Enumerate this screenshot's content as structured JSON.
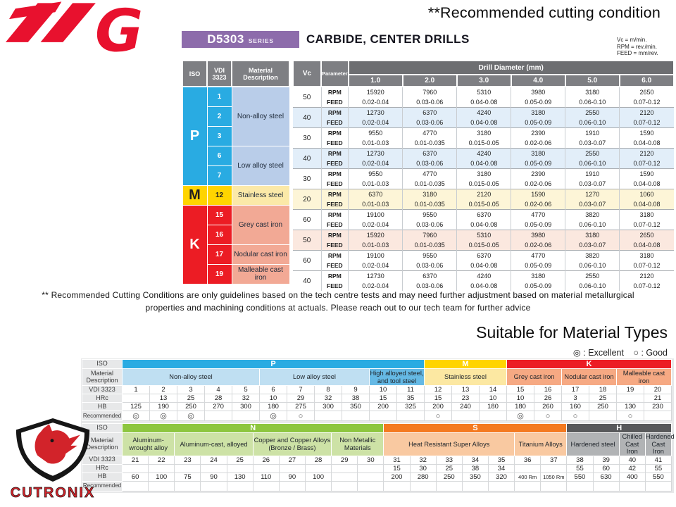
{
  "header": {
    "recommended_title": "**Recommended cutting condition",
    "series_code": "D5303",
    "series_label": "SERIES",
    "product_title": "CARBIDE, CENTER DRILLS",
    "units": [
      "Vc = m/min.",
      "RPM = rev./min.",
      "FEED = mm/rev."
    ]
  },
  "colors": {
    "brand_red": "#e8112e",
    "purple": "#8d6cab",
    "header_gray": "#7e7f83",
    "p_blue": "#29abe2",
    "m_yellow": "#ffd400",
    "k_red": "#ec1c24",
    "n_green": "#8dc63f",
    "s_orange": "#f47a20",
    "h_gray": "#58595b",
    "tints": {
      "none": "#ffffff",
      "blue": "#e2eef9",
      "yellow": "#fdf5d7",
      "pink": "#fbe8df"
    }
  },
  "cutting_table": {
    "left_headers": {
      "iso": "ISO",
      "vdi": "VDI 3323",
      "material": "Material Description"
    },
    "right_headers": {
      "vc": "Vc",
      "parameter": "Parameter",
      "diameter": "Drill Diameter (mm)",
      "sizes": [
        "1.0",
        "2.0",
        "3.0",
        "4.0",
        "5.0",
        "6.0"
      ]
    },
    "parameter_labels": {
      "rpm": "RPM",
      "feed": "FEED"
    },
    "sections": [
      {
        "iso": "P",
        "color": "#29abe2",
        "text_color": "#ffffff",
        "mat_bg": "#b9cde9",
        "materials": [
          {
            "vdi": [
              "1",
              "2",
              "3"
            ],
            "name": "Non-alloy steel"
          },
          {
            "vdi": [
              "6",
              "7"
            ],
            "name": "Low alloy steel"
          }
        ]
      },
      {
        "iso": "M",
        "color": "#ffd400",
        "text_color": "#231f20",
        "mat_bg": "#fbe9a8",
        "materials": [
          {
            "vdi": [
              "12"
            ],
            "name": "Stainless steel"
          }
        ]
      },
      {
        "iso": "K",
        "color": "#ec1c24",
        "text_color": "#ffffff",
        "mat_bg": "#f2a995",
        "materials": [
          {
            "vdi": [
              "15",
              "16"
            ],
            "name": "Grey cast iron"
          },
          {
            "vdi": [
              "17"
            ],
            "name": "Nodular cast iron"
          },
          {
            "vdi": [
              "19"
            ],
            "name": "Malleable cast iron"
          }
        ]
      }
    ],
    "rows": [
      {
        "vc": "50",
        "tint": "none",
        "rpm": [
          "15920",
          "7960",
          "5310",
          "3980",
          "3180",
          "2650"
        ],
        "feed": [
          "0.02-0.04",
          "0.03-0.06",
          "0.04-0.08",
          "0.05-0.09",
          "0.06-0.10",
          "0.07-0.12"
        ]
      },
      {
        "vc": "40",
        "tint": "blue",
        "rpm": [
          "12730",
          "6370",
          "4240",
          "3180",
          "2550",
          "2120"
        ],
        "feed": [
          "0.02-0.04",
          "0.03-0.06",
          "0.04-0.08",
          "0.05-0.09",
          "0.06-0.10",
          "0.07-0.12"
        ]
      },
      {
        "vc": "30",
        "tint": "none",
        "rpm": [
          "9550",
          "4770",
          "3180",
          "2390",
          "1910",
          "1590"
        ],
        "feed": [
          "0.01-0.03",
          "0.01-0.035",
          "0.015-0.05",
          "0.02-0.06",
          "0.03-0.07",
          "0.04-0.08"
        ]
      },
      {
        "vc": "40",
        "tint": "blue",
        "rpm": [
          "12730",
          "6370",
          "4240",
          "3180",
          "2550",
          "2120"
        ],
        "feed": [
          "0.02-0.04",
          "0.03-0.06",
          "0.04-0.08",
          "0.05-0.09",
          "0.06-0.10",
          "0.07-0.12"
        ]
      },
      {
        "vc": "30",
        "tint": "none",
        "rpm": [
          "9550",
          "4770",
          "3180",
          "2390",
          "1910",
          "1590"
        ],
        "feed": [
          "0.01-0.03",
          "0.01-0.035",
          "0.015-0.05",
          "0.02-0.06",
          "0.03-0.07",
          "0.04-0.08"
        ]
      },
      {
        "vc": "20",
        "tint": "yellow",
        "rpm": [
          "6370",
          "3180",
          "2120",
          "1590",
          "1270",
          "1060"
        ],
        "feed": [
          "0.01-0.03",
          "0.01-0.035",
          "0.015-0.05",
          "0.02-0.06",
          "0.03-0.07",
          "0.04-0.08"
        ]
      },
      {
        "vc": "60",
        "tint": "none",
        "rpm": [
          "19100",
          "9550",
          "6370",
          "4770",
          "3820",
          "3180"
        ],
        "feed": [
          "0.02-0.04",
          "0.03-0.06",
          "0.04-0.08",
          "0.05-0.09",
          "0.06-0.10",
          "0.07-0.12"
        ]
      },
      {
        "vc": "50",
        "tint": "pink",
        "rpm": [
          "15920",
          "7960",
          "5310",
          "3980",
          "3180",
          "2650"
        ],
        "feed": [
          "0.01-0.03",
          "0.01-0.035",
          "0.015-0.05",
          "0.02-0.06",
          "0.03-0.07",
          "0.04-0.08"
        ]
      },
      {
        "vc": "60",
        "tint": "none",
        "rpm": [
          "19100",
          "9550",
          "6370",
          "4770",
          "3820",
          "3180"
        ],
        "feed": [
          "0.02-0.04",
          "0.03-0.06",
          "0.04-0.08",
          "0.05-0.09",
          "0.06-0.10",
          "0.07-0.12"
        ]
      },
      {
        "vc": "40",
        "tint": "none",
        "rpm": [
          "12730",
          "6370",
          "4240",
          "3180",
          "2550",
          "2120"
        ],
        "feed": [
          "0.02-0.04",
          "0.03-0.06",
          "0.04-0.08",
          "0.05-0.09",
          "0.06-0.10",
          "0.07-0.12"
        ]
      }
    ]
  },
  "disclaimer": {
    "line1": "** Recommended Cutting Conditions are only guidelines based on the tech centre tests and may need further adjustment based on material metallurgical",
    "line2": "properties and machining conditions at actuals. Please reach out to our tech team for further advice"
  },
  "suitable": {
    "title": "Suitable for Material Types",
    "legend_excellent": "◎ : Excellent",
    "legend_good": "○ : Good"
  },
  "material_table": {
    "row_labels": [
      "ISO",
      "Material Description",
      "VDI 3323",
      "HRc",
      "HB",
      "Recommended"
    ],
    "top": {
      "iso_groups": [
        {
          "label": "P",
          "span": 11,
          "bg": "#29abe2"
        },
        {
          "label": "M",
          "span": 3,
          "bg": "#ffd400"
        },
        {
          "label": "K",
          "span": 6,
          "bg": "#ec1c24"
        }
      ],
      "material_groups": [
        {
          "label": "Non-alloy steel",
          "span": 5,
          "bg": "#bfdff2",
          "white": false
        },
        {
          "label": "Low alloy steel",
          "span": 4,
          "bg": "#bfdff2",
          "white": false
        },
        {
          "label": "High alloyed steel, and tool steel",
          "span": 2,
          "bg": "#65b9e5",
          "white": true
        },
        {
          "label": "Stainless steel",
          "span": 3,
          "bg": "#fce8a2",
          "white": false
        },
        {
          "label": "Grey cast iron",
          "span": 2,
          "bg": "#f6a983",
          "white": false
        },
        {
          "label": "Nodular cast iron",
          "span": 2,
          "bg": "#f6a983",
          "white": false
        },
        {
          "label": "Malleable cast iron",
          "span": 2,
          "bg": "#f6a983",
          "white": false
        }
      ],
      "vdi": [
        "1",
        "2",
        "3",
        "4",
        "5",
        "6",
        "7",
        "8",
        "9",
        "10",
        "11",
        "12",
        "13",
        "14",
        "15",
        "16",
        "17",
        "18",
        "19",
        "20"
      ],
      "hrc": [
        "",
        "13",
        "25",
        "28",
        "32",
        "10",
        "29",
        "32",
        "38",
        "15",
        "35",
        "15",
        "23",
        "10",
        "10",
        "26",
        "3",
        "25",
        "",
        "21"
      ],
      "hb": [
        "125",
        "190",
        "250",
        "270",
        "300",
        "180",
        "275",
        "300",
        "350",
        "200",
        "325",
        "200",
        "240",
        "180",
        "180",
        "260",
        "160",
        "250",
        "130",
        "230"
      ],
      "recommended": [
        "◎",
        "◎",
        "◎",
        "",
        "",
        "◎",
        "○",
        "",
        "",
        "",
        "",
        "○",
        "",
        "",
        "◎",
        "○",
        "○",
        "",
        "○",
        ""
      ]
    },
    "bottom": {
      "iso_groups": [
        {
          "label": "N",
          "span": 10,
          "bg": "#8dc63f"
        },
        {
          "label": "S",
          "span": 7,
          "bg": "#f47a20"
        },
        {
          "label": "H",
          "span": 4,
          "bg": "#58595b"
        }
      ],
      "material_groups": [
        {
          "label": "Aluminum-wrought alloy",
          "span": 2,
          "bg": "#cde2a6",
          "white": false
        },
        {
          "label": "Aluminum-cast, alloyed",
          "span": 3,
          "bg": "#cde2a6",
          "white": false
        },
        {
          "label": "Copper and Copper Alloys (Bronze / Brass)",
          "span": 3,
          "bg": "#cde2a6",
          "white": false
        },
        {
          "label": "Non Metallic Materials",
          "span": 2,
          "bg": "#cde2a6",
          "white": false
        },
        {
          "label": "Heat Resistant Super Alloys",
          "span": 5,
          "bg": "#f9c9a1",
          "white": false
        },
        {
          "label": "Titanium Alloys",
          "span": 2,
          "bg": "#f9c9a1",
          "white": false
        },
        {
          "label": "Hardened steel",
          "span": 2,
          "bg": "#b1b3b5",
          "white": false
        },
        {
          "label": "Chilled Cast Iron",
          "span": 1,
          "bg": "#b1b3b5",
          "white": false
        },
        {
          "label": "Hardened Cast Iron",
          "span": 1,
          "bg": "#b1b3b5",
          "white": false
        }
      ],
      "vdi": [
        "21",
        "22",
        "23",
        "24",
        "25",
        "26",
        "27",
        "28",
        "29",
        "30",
        "31",
        "32",
        "33",
        "34",
        "35",
        "36",
        "37",
        "38",
        "39",
        "40",
        "41"
      ],
      "hrc": [
        "",
        "",
        "",
        "",
        "",
        "",
        "",
        "",
        "",
        "",
        "15",
        "30",
        "25",
        "38",
        "34",
        "",
        "",
        "55",
        "60",
        "42",
        "55"
      ],
      "hb": [
        "60",
        "100",
        "75",
        "90",
        "130",
        "110",
        "90",
        "100",
        "",
        "",
        "200",
        "280",
        "250",
        "350",
        "320",
        "400 Rm",
        "1050 Rm",
        "550",
        "630",
        "400",
        "550"
      ],
      "recommended": [
        "",
        "",
        "",
        "",
        "",
        "",
        "",
        "",
        "",
        "",
        "",
        "",
        "",
        "",
        "",
        "",
        "",
        "",
        "",
        "",
        ""
      ]
    }
  },
  "footer": {
    "brand": "CUTRONIX"
  }
}
